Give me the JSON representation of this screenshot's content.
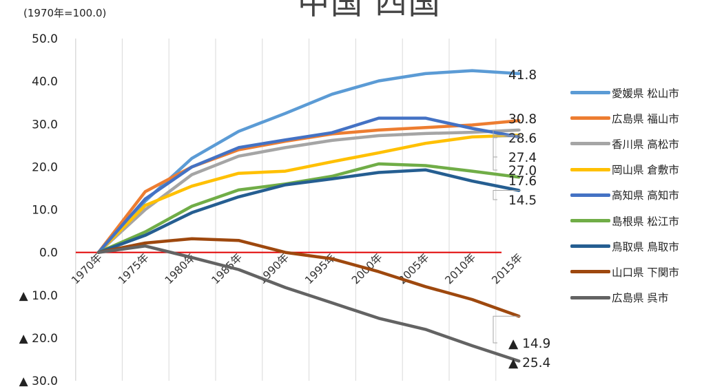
{
  "header": {
    "unit_note": "(1970年=100.0)",
    "title_fragment": "中国 四国"
  },
  "chart_data": {
    "type": "line",
    "title": "",
    "xlabel": "",
    "ylabel": "",
    "categories": [
      "1970年",
      "1975年",
      "1980年",
      "1985年",
      "1990年",
      "1995年",
      "2000年",
      "2005年",
      "2010年",
      "2015年"
    ],
    "ylim": [
      -30,
      50
    ],
    "y_ticks": [
      50,
      40,
      30,
      20,
      10,
      0,
      -10,
      -20,
      -30
    ],
    "y_tick_labels": [
      "50.0",
      "40.0",
      "30.0",
      "20.0",
      "10.0",
      "0.0",
      "▲ 10.0",
      "▲ 20.0",
      "▲ 30.0"
    ],
    "grid": "vertical",
    "baseline_color": "#e00000",
    "legend_position": "right",
    "series": [
      {
        "name": "愛媛県 松山市",
        "color": "#5b9bd5",
        "values": [
          0,
          12,
          22,
          28.3,
          32.5,
          37,
          40.1,
          41.8,
          42.5,
          41.8
        ],
        "end_label": "41.8"
      },
      {
        "name": "広島県 福山市",
        "color": "#ed7d31",
        "values": [
          0,
          14.2,
          20,
          24,
          26,
          27.7,
          28.6,
          29.2,
          29.8,
          30.8
        ],
        "end_label": "30.8"
      },
      {
        "name": "香川県 高松市",
        "color": "#a5a5a5",
        "values": [
          0,
          10,
          18.2,
          22.5,
          24.5,
          26.2,
          27.3,
          27.8,
          28.1,
          28.6
        ],
        "end_label": "28.6"
      },
      {
        "name": "岡山県 倉敷市",
        "color": "#ffc000",
        "values": [
          0,
          11,
          15.5,
          18.5,
          19,
          21.2,
          23.3,
          25.5,
          27,
          27.4
        ],
        "end_label": "27.4"
      },
      {
        "name": "高知県 高知市",
        "color": "#4472c4",
        "values": [
          0,
          12.5,
          20,
          24.5,
          26.3,
          28,
          31.4,
          31.4,
          29,
          27
        ],
        "end_label": "27.0"
      },
      {
        "name": "島根県 松江市",
        "color": "#70ad47",
        "values": [
          0,
          4.8,
          10.8,
          14.6,
          16,
          17.8,
          20.7,
          20.3,
          19,
          17.6
        ],
        "end_label": "17.6"
      },
      {
        "name": "鳥取県 鳥取市",
        "color": "#255e91",
        "values": [
          0,
          4,
          9.3,
          13,
          15.8,
          17.2,
          18.7,
          19.3,
          16.7,
          14.5
        ],
        "end_label": "14.5"
      },
      {
        "name": "山口県 下関市",
        "color": "#9e480e",
        "values": [
          0,
          2.2,
          3.2,
          2.8,
          0,
          -1.5,
          -4.5,
          -8,
          -11,
          -14.9
        ],
        "end_label": "▲ 14.9"
      },
      {
        "name": "広島県 呉市",
        "color": "#636363",
        "values": [
          0,
          1.5,
          -1.2,
          -4,
          -8.2,
          -11.8,
          -15.4,
          -18,
          -21.8,
          -25.4
        ],
        "end_label": "▲ 25.4"
      }
    ]
  }
}
